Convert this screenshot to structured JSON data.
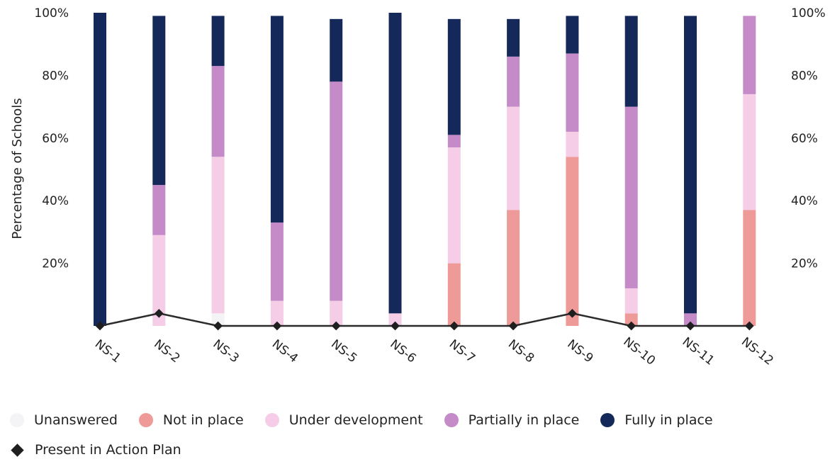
{
  "chart_data": {
    "type": "bar",
    "stacked": true,
    "ylabel": "Percentage of Schools",
    "ylim": [
      0,
      100
    ],
    "y_ticks": [
      "20%",
      "40%",
      "60%",
      "80%",
      "100%"
    ],
    "y_tick_values": [
      20,
      40,
      60,
      80,
      100
    ],
    "categories": [
      "NS-1",
      "NS-2",
      "NS-3",
      "NS-4",
      "NS-5",
      "NS-6",
      "NS-7",
      "NS-8",
      "NS-9",
      "NS-10",
      "NS-11",
      "NS-12"
    ],
    "series": [
      {
        "name": "Unanswered",
        "color": "#f4f4f6",
        "values": [
          0,
          0,
          4,
          0,
          0,
          0,
          0,
          0,
          0,
          0,
          0,
          0
        ]
      },
      {
        "name": "Not in place",
        "color": "#ee9a98",
        "values": [
          0,
          0,
          0,
          0,
          0,
          0,
          20,
          37,
          54,
          4,
          0,
          37
        ]
      },
      {
        "name": "Under development",
        "color": "#f5cde6",
        "values": [
          0,
          29,
          50,
          8,
          8,
          4,
          37,
          33,
          8,
          8,
          0,
          37
        ]
      },
      {
        "name": "Partially in place",
        "color": "#c58bc8",
        "values": [
          0,
          16,
          29,
          25,
          70,
          0,
          4,
          16,
          25,
          58,
          4,
          25
        ]
      },
      {
        "name": "Fully in place",
        "color": "#14285a",
        "values": [
          100,
          54,
          16,
          66,
          20,
          96,
          37,
          12,
          12,
          29,
          95,
          0
        ]
      }
    ],
    "line_series": {
      "name": "Present in Action Plan",
      "color": "#2b2b2b",
      "values": [
        0,
        4,
        0,
        0,
        0,
        0,
        0,
        0,
        4,
        0,
        0,
        0
      ]
    },
    "grid": false,
    "legend_position": "bottom-left"
  }
}
